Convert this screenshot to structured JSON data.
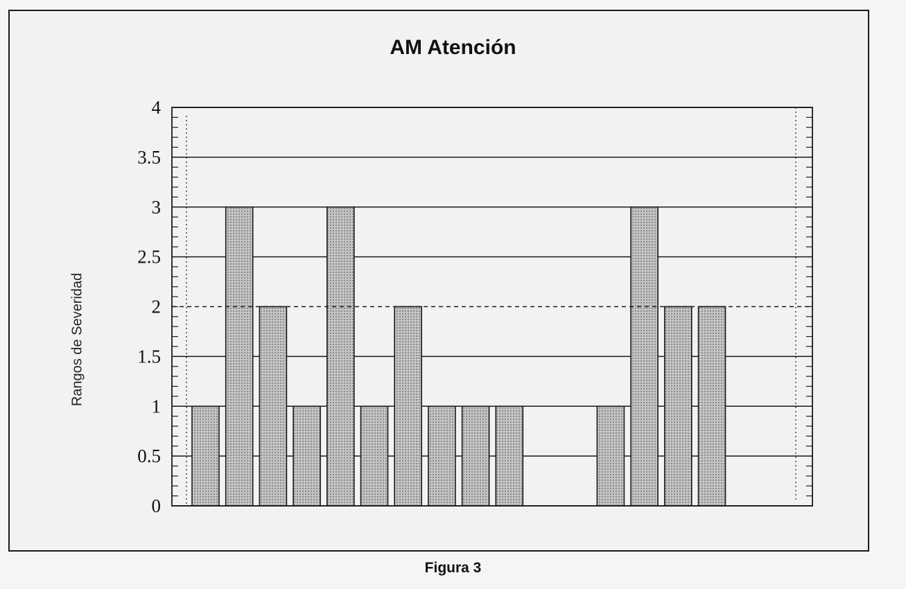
{
  "caption": "Figura 3",
  "chart_data": {
    "type": "bar",
    "title": "AM Atención",
    "xlabel": "",
    "ylabel": "Rangos de Severidad",
    "ylim": [
      0,
      4
    ],
    "yticks": [
      "0",
      "0.5",
      "1",
      "1.5",
      "2",
      "2.5",
      "3",
      "3.5",
      "4"
    ],
    "grid": true,
    "reference_line": {
      "value": 2,
      "style": "dashed"
    },
    "values": [
      1,
      3,
      2,
      1,
      3,
      1,
      2,
      1,
      1,
      1,
      null,
      null,
      1,
      3,
      2,
      2
    ],
    "colors": {
      "bar_fill": "#bdbdbd",
      "bar_edge": "#1a1a1a",
      "grid": "#1a1a1a"
    }
  }
}
